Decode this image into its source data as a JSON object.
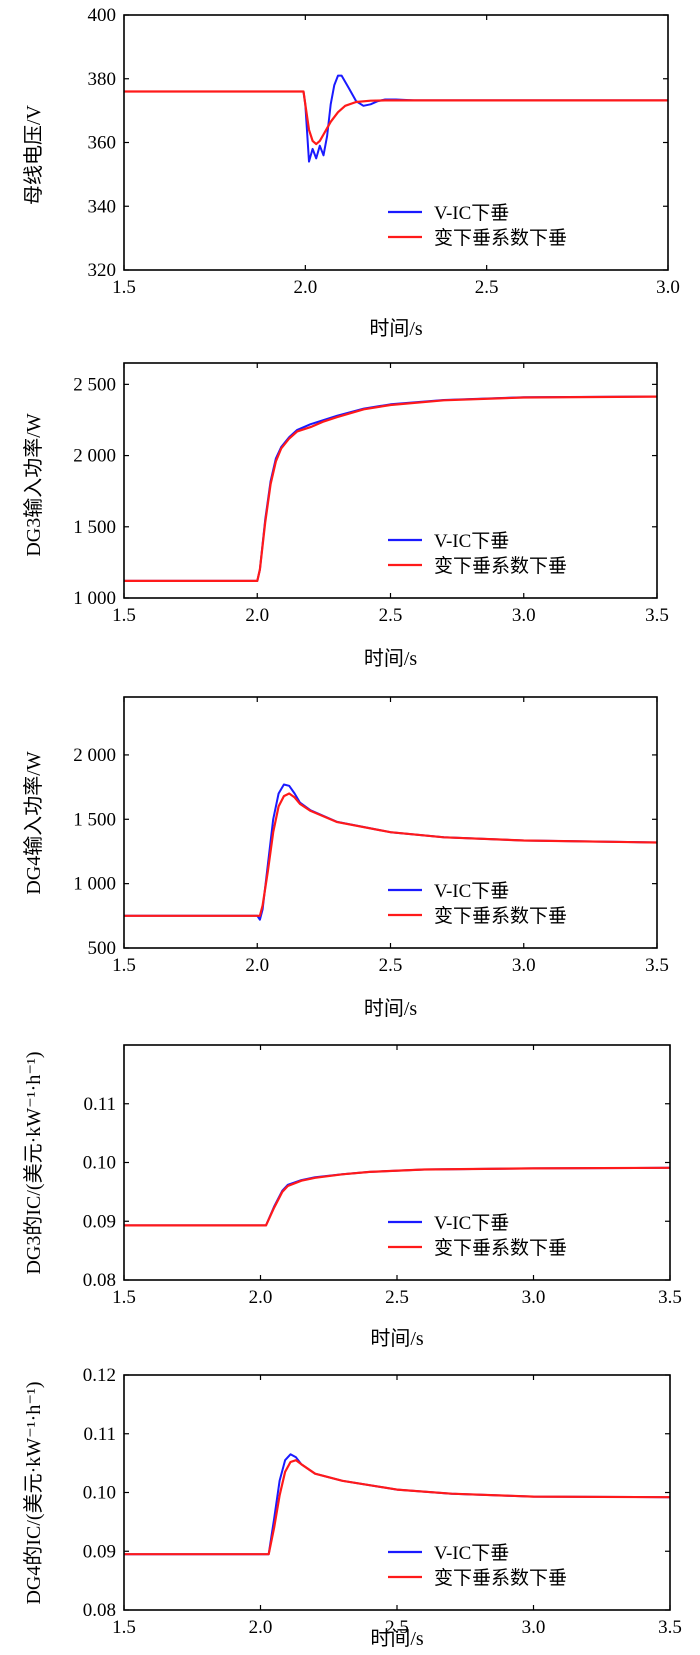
{
  "legend": {
    "series1": "V-IC下垂",
    "series2": "变下垂系数下垂"
  },
  "colors": {
    "series1": "#1a1aff",
    "series2": "#ff1a1a",
    "axis": "#000000"
  },
  "chart_data": [
    {
      "type": "line",
      "xlabel": "时间/s",
      "ylabel": "母线电压/V",
      "xlim": [
        1.5,
        3.0
      ],
      "ylim": [
        320,
        400
      ],
      "xticks": [
        1.5,
        2.0,
        2.5,
        3.0
      ],
      "xtick_labels": [
        "1.5",
        "2.0",
        "2.5",
        "3.0"
      ],
      "yticks": [
        320,
        340,
        360,
        380,
        400
      ],
      "ytick_labels": [
        "320",
        "340",
        "360",
        "380",
        "400"
      ],
      "series": [
        {
          "name": "V-IC下垂",
          "x": [
            1.5,
            1.995,
            2.0,
            2.01,
            2.02,
            2.03,
            2.04,
            2.05,
            2.06,
            2.07,
            2.08,
            2.09,
            2.1,
            2.12,
            2.14,
            2.16,
            2.18,
            2.2,
            2.22,
            2.25,
            2.3,
            3.0
          ],
          "y": [
            376,
            376,
            372,
            354,
            358,
            355,
            359,
            356,
            362,
            372,
            378,
            381,
            381,
            377,
            373,
            371.5,
            372,
            373,
            373.5,
            373.5,
            373.2,
            373.2
          ]
        },
        {
          "name": "变下垂系数下垂",
          "x": [
            1.5,
            1.995,
            2.0,
            2.01,
            2.02,
            2.03,
            2.04,
            2.05,
            2.07,
            2.09,
            2.11,
            2.14,
            2.18,
            2.22,
            2.3,
            3.0
          ],
          "y": [
            376,
            376,
            372,
            364,
            360.5,
            359.5,
            360.5,
            362.5,
            366.5,
            369.5,
            371.5,
            372.7,
            373.1,
            373.2,
            373.2,
            373.2
          ]
        }
      ]
    },
    {
      "type": "line",
      "xlabel": "时间/s",
      "ylabel": "DG3输入功率/W",
      "xlim": [
        1.5,
        3.5
      ],
      "ylim": [
        1000,
        2650
      ],
      "xticks": [
        1.5,
        2.0,
        2.5,
        3.0,
        3.5
      ],
      "xtick_labels": [
        "1.5",
        "2.0",
        "2.5",
        "3.0",
        "3.5"
      ],
      "yticks": [
        1000,
        1500,
        2000,
        2500
      ],
      "ytick_labels": [
        "1 000",
        "1 500",
        "2 000",
        "2 500"
      ],
      "series": [
        {
          "name": "V-IC下垂",
          "x": [
            1.5,
            2.0,
            2.01,
            2.03,
            2.05,
            2.07,
            2.09,
            2.12,
            2.15,
            2.2,
            2.25,
            2.3,
            2.4,
            2.5,
            2.7,
            3.0,
            3.5
          ],
          "y": [
            1120,
            1120,
            1200,
            1550,
            1820,
            1980,
            2060,
            2130,
            2180,
            2220,
            2250,
            2280,
            2330,
            2360,
            2390,
            2410,
            2415
          ]
        },
        {
          "name": "变下垂系数下垂",
          "x": [
            1.5,
            2.0,
            2.01,
            2.03,
            2.05,
            2.07,
            2.09,
            2.12,
            2.15,
            2.2,
            2.25,
            2.3,
            2.4,
            2.5,
            2.7,
            3.0,
            3.5
          ],
          "y": [
            1120,
            1120,
            1200,
            1530,
            1800,
            1960,
            2050,
            2120,
            2170,
            2200,
            2240,
            2270,
            2325,
            2355,
            2388,
            2408,
            2414
          ]
        }
      ]
    },
    {
      "type": "line",
      "xlabel": "时间/s",
      "ylabel": "DG4输入功率/W",
      "xlim": [
        1.5,
        3.5
      ],
      "ylim": [
        500,
        2450
      ],
      "xticks": [
        1.5,
        2.0,
        2.5,
        3.0,
        3.5
      ],
      "xtick_labels": [
        "1.5",
        "2.0",
        "2.5",
        "3.0",
        "3.5"
      ],
      "yticks": [
        500,
        1000,
        1500,
        2000
      ],
      "ytick_labels": [
        "500",
        "1 000",
        "1 500",
        "2 000"
      ],
      "series": [
        {
          "name": "V-IC下垂",
          "x": [
            1.5,
            2.0,
            2.01,
            2.02,
            2.04,
            2.06,
            2.08,
            2.1,
            2.12,
            2.14,
            2.16,
            2.2,
            2.3,
            2.5,
            2.7,
            3.0,
            3.5
          ],
          "y": [
            750,
            750,
            720,
            800,
            1150,
            1500,
            1700,
            1770,
            1760,
            1700,
            1630,
            1570,
            1480,
            1400,
            1360,
            1335,
            1320
          ]
        },
        {
          "name": "变下垂系数下垂",
          "x": [
            1.5,
            2.0,
            2.01,
            2.02,
            2.04,
            2.06,
            2.08,
            2.1,
            2.12,
            2.14,
            2.16,
            2.2,
            2.3,
            2.5,
            2.7,
            3.0,
            3.5
          ],
          "y": [
            750,
            750,
            750,
            830,
            1100,
            1400,
            1600,
            1680,
            1700,
            1670,
            1620,
            1565,
            1478,
            1400,
            1360,
            1335,
            1320
          ]
        }
      ]
    },
    {
      "type": "line",
      "xlabel": "时间/s",
      "ylabel": "DG3的IC/(美元·kW⁻¹·h⁻¹)",
      "xlim": [
        1.5,
        3.5
      ],
      "ylim": [
        0.08,
        0.12
      ],
      "xticks": [
        1.5,
        2.0,
        2.5,
        3.0,
        3.5
      ],
      "xtick_labels": [
        "1.5",
        "2.0",
        "2.5",
        "3.0",
        "3.5"
      ],
      "yticks": [
        0.08,
        0.09,
        0.1,
        0.11
      ],
      "ytick_labels": [
        "0.08",
        "0.09",
        "0.10",
        "0.11"
      ],
      "series": [
        {
          "name": "V-IC下垂",
          "x": [
            1.5,
            2.02,
            2.05,
            2.08,
            2.1,
            2.15,
            2.2,
            2.3,
            2.4,
            2.6,
            3.0,
            3.5
          ],
          "y": [
            0.0893,
            0.0893,
            0.0925,
            0.0952,
            0.0962,
            0.097,
            0.0975,
            0.098,
            0.0984,
            0.0988,
            0.099,
            0.0991
          ]
        },
        {
          "name": "变下垂系数下垂",
          "x": [
            1.5,
            2.02,
            2.05,
            2.08,
            2.1,
            2.15,
            2.2,
            2.3,
            2.4,
            2.6,
            3.0,
            3.5
          ],
          "y": [
            0.0893,
            0.0893,
            0.0923,
            0.095,
            0.096,
            0.0969,
            0.0974,
            0.098,
            0.0984,
            0.0988,
            0.099,
            0.0991
          ]
        }
      ]
    },
    {
      "type": "line",
      "xlabel": "时间/s",
      "ylabel": "DG4的IC/(美元·kW⁻¹·h⁻¹)",
      "xlim": [
        1.5,
        3.5
      ],
      "ylim": [
        0.08,
        0.12
      ],
      "xticks": [
        1.5,
        2.0,
        2.5,
        3.0,
        3.5
      ],
      "xtick_labels": [
        "1.5",
        "2.0",
        "2.5",
        "3.0",
        "3.5"
      ],
      "yticks": [
        0.08,
        0.09,
        0.1,
        0.11,
        0.12
      ],
      "ytick_labels": [
        "0.08",
        "0.09",
        "0.10",
        "0.11",
        "0.12"
      ],
      "series": [
        {
          "name": "V-IC下垂",
          "x": [
            1.5,
            2.02,
            2.03,
            2.05,
            2.07,
            2.09,
            2.11,
            2.13,
            2.15,
            2.2,
            2.3,
            2.5,
            2.7,
            3.0,
            3.5
          ],
          "y": [
            0.0895,
            0.0895,
            0.0895,
            0.0955,
            0.102,
            0.1055,
            0.1065,
            0.106,
            0.1048,
            0.1032,
            0.102,
            0.1005,
            0.0998,
            0.0993,
            0.0992
          ]
        },
        {
          "name": "变下垂系数下垂",
          "x": [
            1.5,
            2.02,
            2.03,
            2.05,
            2.07,
            2.09,
            2.11,
            2.13,
            2.15,
            2.2,
            2.3,
            2.5,
            2.7,
            3.0,
            3.5
          ],
          "y": [
            0.0895,
            0.0895,
            0.0895,
            0.094,
            0.0995,
            0.1035,
            0.1052,
            0.1055,
            0.1048,
            0.1032,
            0.102,
            0.1005,
            0.0998,
            0.0993,
            0.0992
          ]
        }
      ]
    }
  ]
}
